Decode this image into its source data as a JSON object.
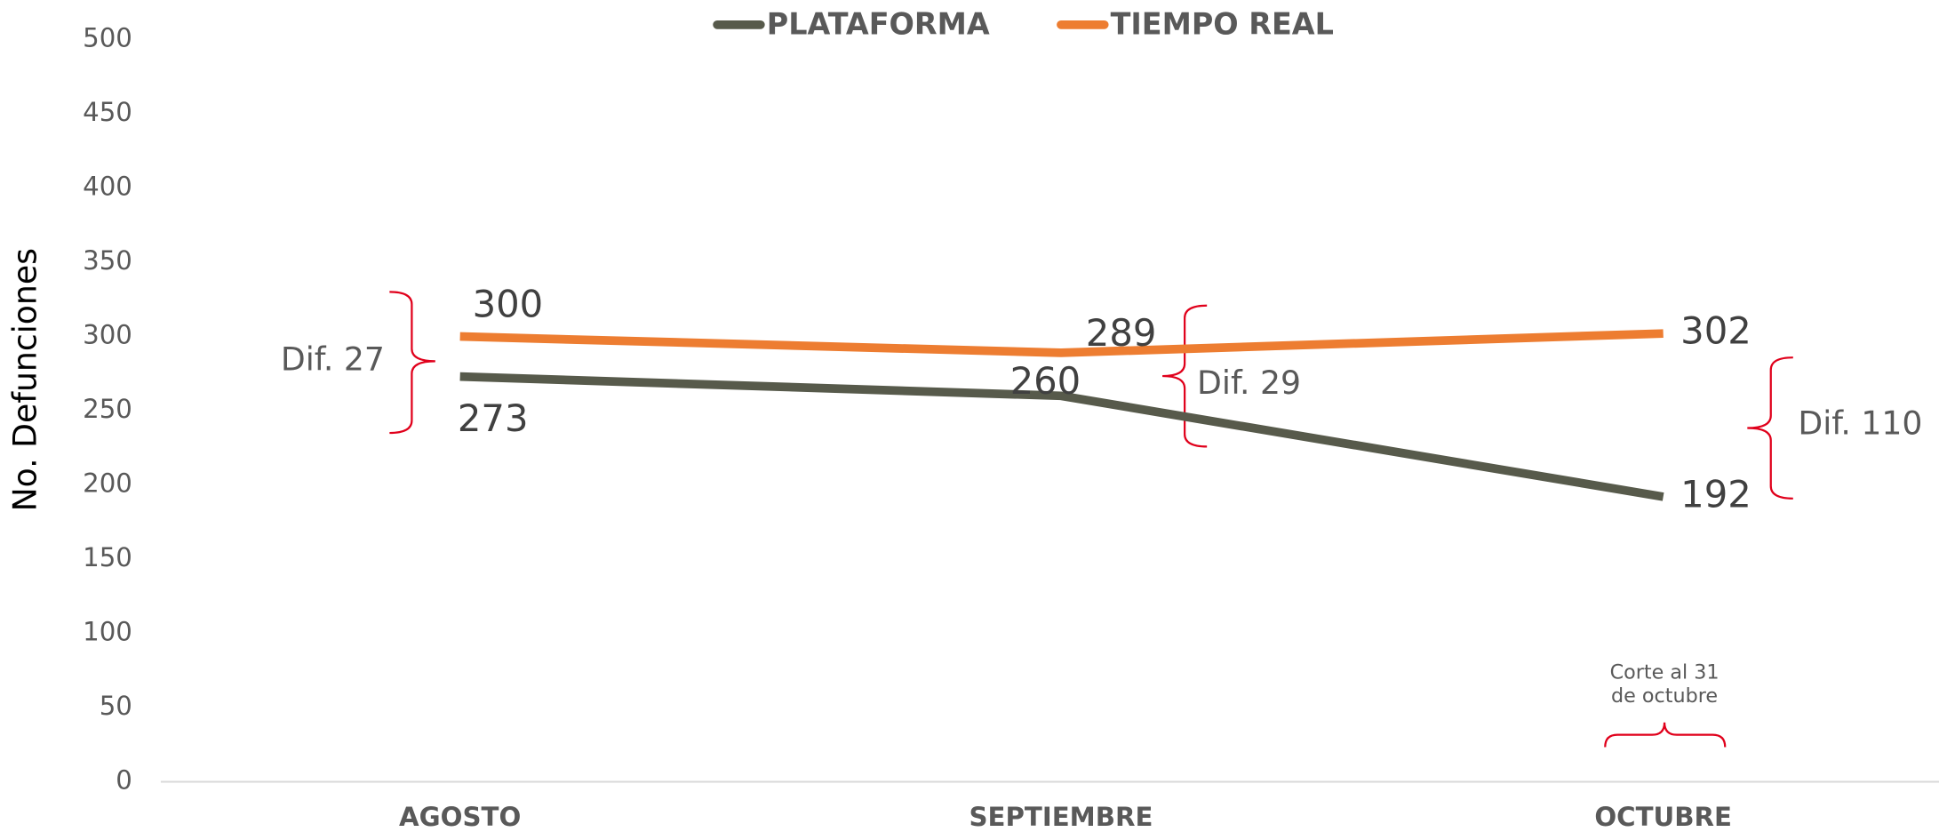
{
  "chart_data": {
    "type": "line",
    "y_label": "No. Defunciones",
    "categories": [
      "AGOSTO",
      "SEPTIEMBRE",
      "OCTUBRE"
    ],
    "series": [
      {
        "name": "PLATAFORMA",
        "color": "#575a4b",
        "values": [
          273,
          260,
          192
        ]
      },
      {
        "name": "TIEMPO REAL",
        "color": "#ed7d31",
        "values": [
          300,
          289,
          302
        ]
      }
    ],
    "ylim": [
      0,
      500
    ],
    "yticks": [
      0,
      50,
      100,
      150,
      200,
      250,
      300,
      350,
      400,
      450,
      500
    ],
    "grid": false,
    "legend": "top",
    "annotations": [
      "Dif.  27",
      "Dif.  29",
      "Dif. 110",
      "Corte al 31",
      "de octubre"
    ]
  }
}
